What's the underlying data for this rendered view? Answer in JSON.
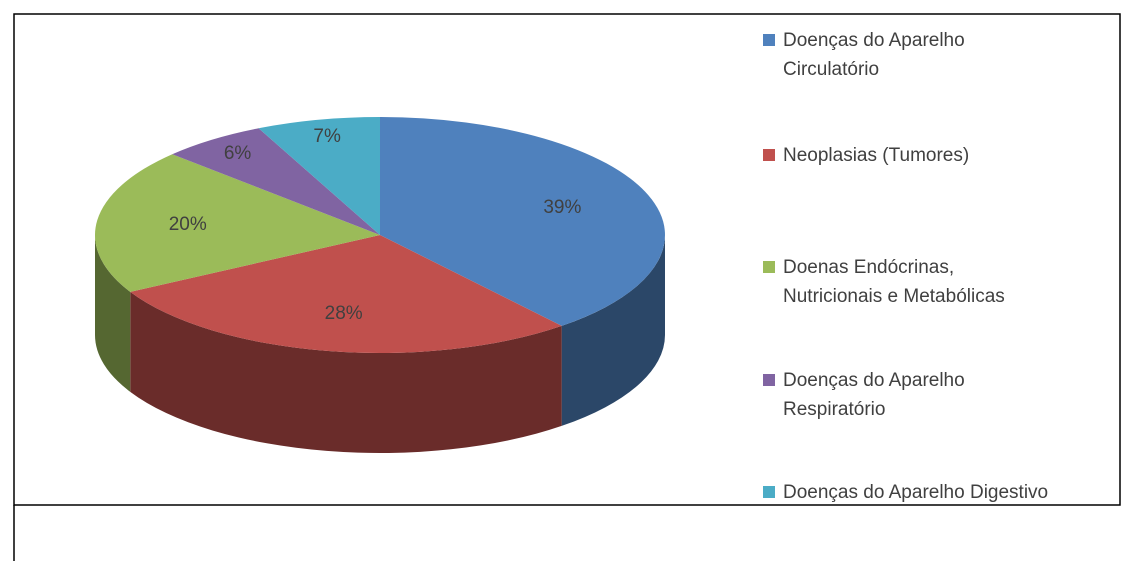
{
  "chart_data": {
    "type": "pie",
    "categories": [
      "Doenças do Aparelho Circulatório",
      "Neoplasias (Tumores)",
      "Doenas Endócrinas, Nutricionais e Metabólicas",
      "Doenças do Aparelho Respiratório",
      "Doenças do Aparelho Digestivo"
    ],
    "values": [
      39,
      28,
      20,
      6,
      7
    ],
    "value_labels": [
      "39%",
      "28%",
      "20%",
      "6%",
      "7%"
    ],
    "colors": [
      "#4f81bd",
      "#c0504d",
      "#9bbb59",
      "#8064a2",
      "#4bacc6"
    ],
    "legend": "right"
  }
}
